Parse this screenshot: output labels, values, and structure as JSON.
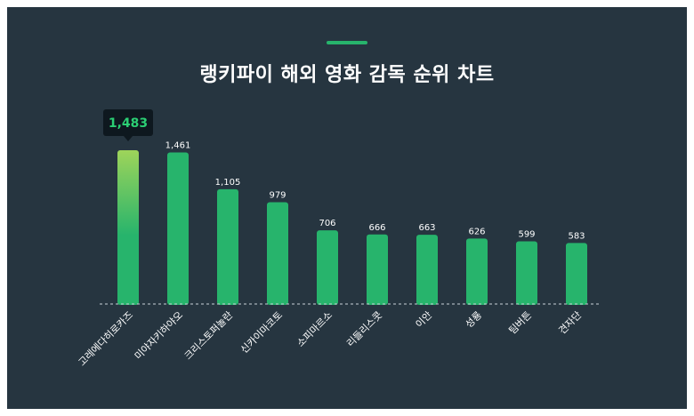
{
  "title": "랭키파이 해외 영화 감독 순위 차트",
  "colors": {
    "background": "#263540",
    "bar": "#27b46c",
    "bar_highlight_top": "#9ed45a",
    "accent": "#27b46c",
    "tooltip_bg": "#0e181f",
    "tooltip_text": "#2bcf74",
    "baseline": "#c9d2d8"
  },
  "chart_data": {
    "type": "bar",
    "categories": [
      "고레에다히로카즈",
      "미야자키하야오",
      "크리스토퍼놀란",
      "신카이마코토",
      "소피마르소",
      "리들리스콧",
      "이안",
      "성룡",
      "팀버튼",
      "견자단"
    ],
    "values": [
      1483,
      1461,
      1105,
      979,
      706,
      666,
      663,
      626,
      599,
      583
    ],
    "value_labels": [
      "1,483",
      "1,461",
      "1,105",
      "979",
      "706",
      "666",
      "663",
      "626",
      "599",
      "583"
    ],
    "highlight_index": 0,
    "highlight_label": "1,483",
    "title": "랭키파이 해외 영화 감독 순위 차트",
    "xlabel": "",
    "ylabel": "",
    "ylim": [
      0,
      1600
    ],
    "grid": false,
    "legend": "none"
  }
}
